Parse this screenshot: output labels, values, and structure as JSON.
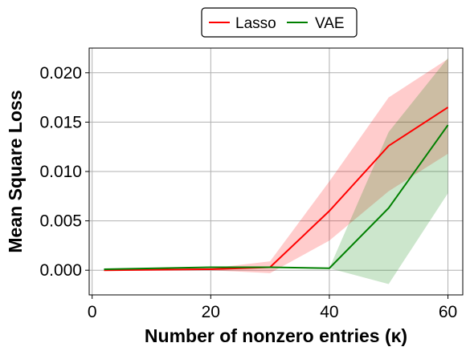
{
  "chart_data": {
    "type": "line",
    "xlabel": "Number of nonzero entries (κ)",
    "ylabel": "Mean Square Loss",
    "xlim": [
      -0.5,
      62.5
    ],
    "ylim": [
      -0.0025,
      0.0225
    ],
    "xticks": [
      0,
      20,
      40,
      60
    ],
    "xtick_labels": [
      "0",
      "20",
      "40",
      "60"
    ],
    "yticks": [
      0.0,
      0.005,
      0.01,
      0.015,
      0.02
    ],
    "ytick_labels": [
      "0.000",
      "0.005",
      "0.010",
      "0.015",
      "0.020"
    ],
    "grid": true,
    "legend_position": "top-center",
    "x": [
      2,
      20,
      30,
      40,
      50,
      60
    ],
    "series": [
      {
        "name": "Lasso",
        "color": "#ff0000",
        "fill_color": "#ff0000",
        "values": [
          0.0,
          0.0001,
          0.0003,
          0.006,
          0.0126,
          0.0165
        ],
        "lower": [
          0.0,
          0.0,
          -0.0003,
          0.003,
          0.008,
          0.0118
        ],
        "upper": [
          0.0,
          0.0002,
          0.0009,
          0.009,
          0.0175,
          0.0214
        ]
      },
      {
        "name": "VAE",
        "color": "#008000",
        "fill_color": "#008000",
        "values": [
          0.0001,
          0.0003,
          0.0003,
          0.0002,
          0.0063,
          0.0147
        ],
        "lower": [
          0.0001,
          0.0003,
          0.0003,
          0.0002,
          -0.0014,
          0.0078
        ],
        "upper": [
          0.0001,
          0.0003,
          0.0003,
          0.0002,
          0.014,
          0.0215
        ]
      }
    ]
  }
}
